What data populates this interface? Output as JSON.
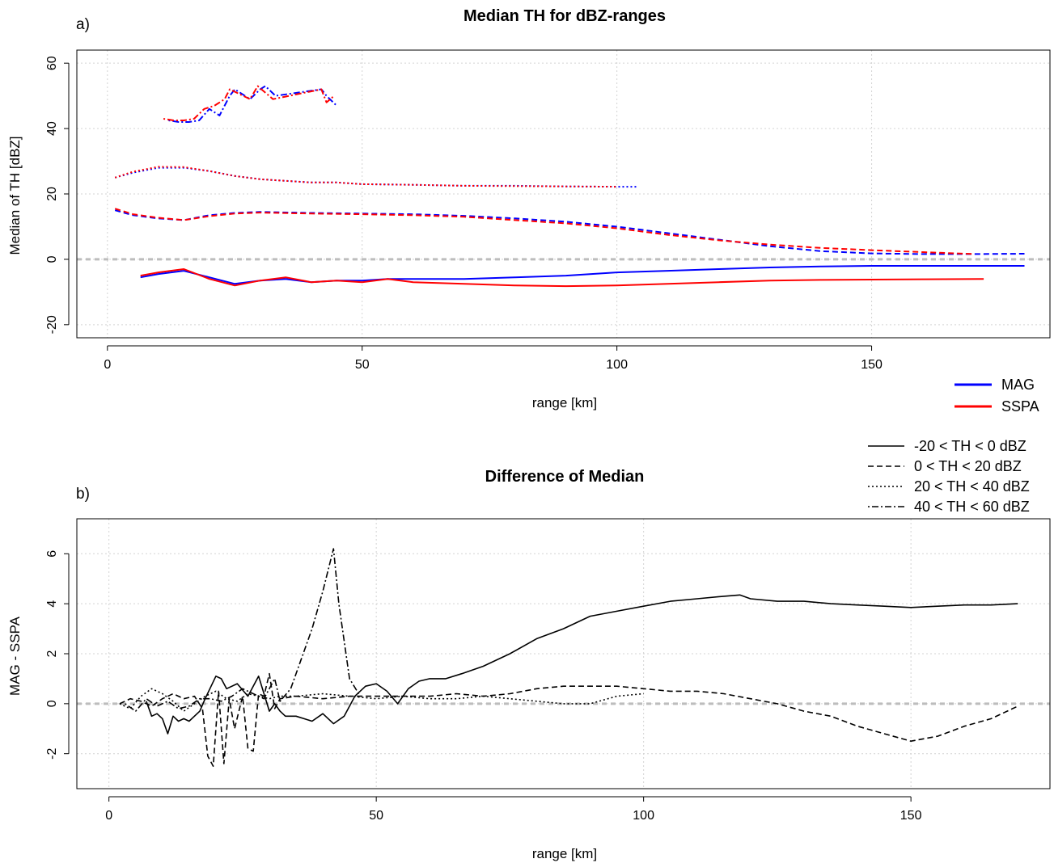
{
  "chart_data": [
    {
      "type": "line",
      "panel_label": "a)",
      "title": "Median TH for dBZ-ranges",
      "xlabel": "range [km]",
      "ylabel": "Median of TH [dBZ]",
      "xlim": [
        -6,
        185
      ],
      "ylim": [
        -24,
        64
      ],
      "xticks": [
        "0",
        "50",
        "100",
        "150"
      ],
      "yticks": [
        "-20",
        "0",
        "20",
        "40",
        "60"
      ],
      "grid": true,
      "reference_line_y": 0,
      "color_legend": [
        {
          "label": "MAG",
          "color": "#0000ff"
        },
        {
          "label": "SSPA",
          "color": "#ff0000"
        }
      ],
      "style_legend": [
        {
          "label": "-20 < TH < 0 dBZ",
          "style": "solid"
        },
        {
          "label": "0 < TH < 20 dBZ",
          "style": "dashed"
        },
        {
          "label": "20 < TH < 40 dBZ",
          "style": "dotted"
        },
        {
          "label": "40 < TH < 60 dBZ",
          "style": "dotdash"
        }
      ],
      "series": [
        {
          "instrument": "MAG",
          "range_class": "-20 < TH < 0 dBZ",
          "style": "solid",
          "color": "#0000ff",
          "x": [
            6.5,
            10,
            15,
            20,
            25,
            30,
            35,
            40,
            45,
            50,
            55,
            60,
            70,
            80,
            90,
            100,
            110,
            120,
            130,
            140,
            150,
            160,
            170,
            180
          ],
          "y": [
            -5.5,
            -4.5,
            -3.5,
            -5.5,
            -7.5,
            -6.5,
            -6,
            -7,
            -6.5,
            -6.5,
            -6,
            -6,
            -6,
            -5.5,
            -5,
            -4,
            -3.5,
            -3,
            -2.5,
            -2.2,
            -2,
            -2,
            -2,
            -2
          ]
        },
        {
          "instrument": "SSPA",
          "range_class": "-20 < TH < 0 dBZ",
          "style": "solid",
          "color": "#ff0000",
          "x": [
            6.5,
            10,
            15,
            20,
            25,
            30,
            35,
            40,
            45,
            50,
            55,
            60,
            70,
            80,
            90,
            100,
            110,
            120,
            130,
            140,
            150,
            160,
            172
          ],
          "y": [
            -5,
            -4,
            -3,
            -6,
            -8,
            -6.5,
            -5.5,
            -7,
            -6.5,
            -7,
            -6,
            -7,
            -7.5,
            -8,
            -8.2,
            -8,
            -7.5,
            -7,
            -6.5,
            -6.3,
            -6.2,
            -6.1,
            -6
          ]
        },
        {
          "instrument": "MAG",
          "range_class": "0 < TH < 20 dBZ",
          "style": "dashed",
          "color": "#0000ff",
          "x": [
            1.5,
            5,
            10,
            15,
            20,
            25,
            30,
            40,
            50,
            60,
            70,
            80,
            90,
            100,
            110,
            120,
            130,
            140,
            150,
            160,
            170,
            180
          ],
          "y": [
            15,
            13.5,
            12.5,
            12,
            13.5,
            14.2,
            14.5,
            14.2,
            14,
            13.8,
            13.3,
            12.5,
            11.5,
            10,
            8,
            6,
            4,
            2.5,
            1.8,
            1.6,
            1.6,
            1.7
          ]
        },
        {
          "instrument": "SSPA",
          "range_class": "0 < TH < 20 dBZ",
          "style": "dashed",
          "color": "#ff0000",
          "x": [
            1.5,
            5,
            10,
            15,
            20,
            25,
            30,
            40,
            50,
            60,
            70,
            80,
            90,
            100,
            110,
            120,
            130,
            140,
            150,
            160,
            170
          ],
          "y": [
            15.5,
            13.8,
            12.7,
            12,
            13.2,
            14,
            14.3,
            14,
            13.8,
            13.5,
            13,
            12,
            11,
            9.5,
            7.5,
            5.8,
            4.5,
            3.5,
            2.8,
            2.2,
            1.6
          ]
        },
        {
          "instrument": "MAG",
          "range_class": "20 < TH < 40 dBZ",
          "style": "dotted",
          "color": "#0000ff",
          "x": [
            1.5,
            5,
            10,
            15,
            20,
            25,
            30,
            35,
            40,
            45,
            50,
            60,
            70,
            80,
            90,
            100,
            104
          ],
          "y": [
            25,
            26.5,
            28,
            28,
            27,
            25.5,
            24.5,
            24,
            23.5,
            23.5,
            23,
            22.8,
            22.5,
            22.5,
            22.3,
            22.2,
            22.2
          ]
        },
        {
          "instrument": "SSPA",
          "range_class": "20 < TH < 40 dBZ",
          "style": "dotted",
          "color": "#ff0000",
          "x": [
            1.5,
            5,
            10,
            15,
            20,
            25,
            30,
            35,
            40,
            45,
            50,
            60,
            70,
            80,
            90,
            100
          ],
          "y": [
            25,
            26.8,
            28.3,
            28.2,
            27,
            25.5,
            24.5,
            24,
            23.5,
            23.5,
            23,
            22.8,
            22.5,
            22.4,
            22.3,
            22.2
          ]
        },
        {
          "instrument": "MAG",
          "range_class": "40 < TH < 60 dBZ",
          "style": "dotdash",
          "color": "#0000ff",
          "x": [
            12,
            14,
            16,
            18,
            20,
            22,
            24,
            25,
            28,
            30,
            31,
            33,
            42,
            43,
            45
          ],
          "y": [
            42.5,
            42,
            42,
            42.5,
            46,
            44,
            50,
            52,
            49,
            52,
            53,
            50,
            52,
            50,
            47
          ]
        },
        {
          "instrument": "SSPA",
          "range_class": "40 < TH < 60 dBZ",
          "style": "dotdash",
          "color": "#ff0000",
          "x": [
            11,
            13,
            15,
            17,
            19,
            21,
            23,
            24,
            28,
            29.5,
            31,
            32.5,
            42,
            43,
            44.5
          ],
          "y": [
            43,
            42.5,
            42.5,
            43,
            46,
            47,
            49,
            52,
            49,
            53,
            51,
            49,
            52,
            48,
            50
          ]
        }
      ]
    },
    {
      "type": "line",
      "panel_label": "b)",
      "title": "Difference of Median",
      "xlabel": "range [km]",
      "ylabel": "MAG - SSPA",
      "xlim": [
        -6,
        176
      ],
      "ylim": [
        -3.4,
        7.4
      ],
      "xticks": [
        "0",
        "50",
        "100",
        "150"
      ],
      "yticks": [
        "-2",
        "0",
        "2",
        "4",
        "6"
      ],
      "grid": true,
      "reference_line_y": 0,
      "series": [
        {
          "range_class": "-20 < TH < 0 dBZ",
          "style": "solid",
          "color": "#000000",
          "x": [
            7,
            8,
            9,
            10,
            11,
            12,
            13,
            14,
            15,
            17,
            18,
            20,
            21,
            22,
            24,
            26,
            28,
            30,
            31,
            32,
            33,
            35,
            38,
            40,
            42,
            44,
            46,
            48,
            50,
            52,
            54,
            56,
            58,
            60,
            63,
            66,
            70,
            75,
            80,
            85,
            90,
            95,
            100,
            105,
            110,
            115,
            118,
            120,
            125,
            130,
            135,
            140,
            145,
            150,
            155,
            160,
            165,
            170
          ],
          "y": [
            0.1,
            -0.5,
            -0.4,
            -0.6,
            -1.2,
            -0.5,
            -0.7,
            -0.6,
            -0.7,
            -0.3,
            0.2,
            1.1,
            1.0,
            0.6,
            0.8,
            0.3,
            1.1,
            -0.3,
            0,
            -0.3,
            -0.5,
            -0.5,
            -0.7,
            -0.4,
            -0.8,
            -0.5,
            0.3,
            0.7,
            0.8,
            0.5,
            0,
            0.6,
            0.9,
            1.0,
            1.0,
            1.2,
            1.5,
            2.0,
            2.6,
            3.0,
            3.5,
            3.7,
            3.9,
            4.1,
            4.2,
            4.3,
            4.35,
            4.2,
            4.1,
            4.1,
            4.0,
            3.95,
            3.9,
            3.85,
            3.9,
            3.95,
            3.95,
            4.0
          ]
        },
        {
          "range_class": "0 < TH < 20 dBZ",
          "style": "dashed",
          "color": "#000000",
          "x": [
            2,
            4,
            6,
            8,
            10,
            12,
            14,
            16,
            17.5,
            18.5,
            19.5,
            20.5,
            21.5,
            22.5,
            23.5,
            25,
            26,
            27,
            28,
            29,
            30,
            31,
            32,
            35,
            40,
            45,
            50,
            55,
            60,
            65,
            70,
            75,
            80,
            85,
            90,
            95,
            100,
            105,
            110,
            115,
            120,
            125,
            130,
            135,
            140,
            145,
            150,
            155,
            160,
            165,
            170
          ],
          "y": [
            0,
            0.2,
            0.1,
            -0.1,
            0.2,
            0.4,
            0.2,
            0.3,
            -0.2,
            -2.1,
            -2.5,
            0.5,
            -2.4,
            0.2,
            -1.0,
            0.3,
            -1.8,
            -1.9,
            0.4,
            0.3,
            1.2,
            -0.2,
            0.2,
            0.3,
            0.2,
            0.3,
            0.3,
            0.3,
            0.3,
            0.4,
            0.3,
            0.4,
            0.6,
            0.7,
            0.7,
            0.7,
            0.6,
            0.5,
            0.5,
            0.4,
            0.2,
            0.0,
            -0.3,
            -0.5,
            -0.9,
            -1.2,
            -1.5,
            -1.3,
            -0.9,
            -0.6,
            -0.1
          ]
        },
        {
          "range_class": "20 < TH < 40 dBZ",
          "style": "dotted",
          "color": "#000000",
          "x": [
            2,
            4,
            6,
            8,
            10,
            12,
            14,
            16,
            18,
            20,
            22,
            24,
            26,
            28,
            30,
            32,
            35,
            40,
            45,
            50,
            55,
            60,
            65,
            70,
            75,
            80,
            85,
            90,
            95,
            100
          ],
          "y": [
            0.0,
            -0.2,
            0.3,
            0.6,
            0.4,
            0.1,
            -0.3,
            0.0,
            0.3,
            0.5,
            0.2,
            0.1,
            0.4,
            0.3,
            0.2,
            0.3,
            0.3,
            0.4,
            0.3,
            0.2,
            0.3,
            0.2,
            0.2,
            0.3,
            0.2,
            0.1,
            0.0,
            0.0,
            0.3,
            0.4
          ]
        },
        {
          "range_class": "40 < TH < 60 dBZ",
          "style": "dotdash",
          "color": "#000000",
          "x": [
            3,
            5,
            7,
            9,
            11,
            13,
            15,
            17,
            19,
            21,
            23,
            25,
            27,
            29,
            31,
            32,
            34,
            36,
            38,
            40,
            42,
            43,
            45,
            47
          ],
          "y": [
            0.0,
            -0.3,
            0.2,
            -0.1,
            0.1,
            -0.2,
            -0.1,
            0.2,
            0.2,
            0.1,
            0.3,
            0.6,
            0.4,
            0.2,
            1.0,
            0.1,
            0.6,
            1.8,
            3.0,
            4.5,
            6.2,
            4.0,
            1.0,
            0.3
          ]
        }
      ]
    }
  ]
}
